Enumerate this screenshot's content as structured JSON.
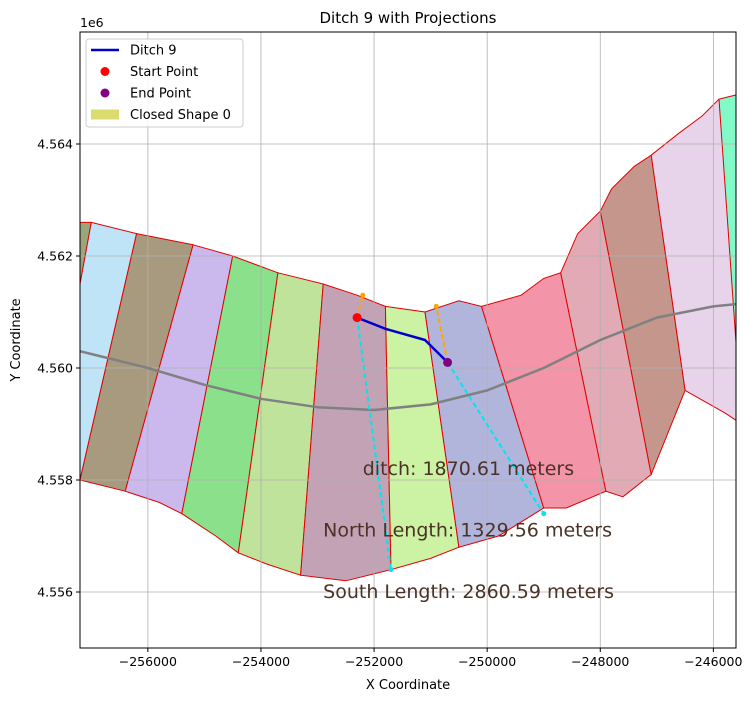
{
  "chart_data": {
    "type": "scatter",
    "title": "Ditch 9 with Projections",
    "xlabel": "X Coordinate",
    "ylabel": "Y Coordinate",
    "y_offset_label": "1e6",
    "xlim": [
      -257200,
      -245600
    ],
    "ylim": [
      4555000,
      4566000
    ],
    "grid": true,
    "legend_placement": "top-left",
    "x_ticks": [
      -256000,
      -254000,
      -252000,
      -250000,
      -248000,
      -246000
    ],
    "x_tick_labels": [
      "−256000",
      "−254000",
      "−252000",
      "−250000",
      "−248000",
      "−246000"
    ],
    "y_ticks": [
      4556000,
      4558000,
      4560000,
      4562000,
      4564000
    ],
    "y_tick_labels": [
      "4.556",
      "4.558",
      "4.560",
      "4.562",
      "4.564"
    ],
    "legend": [
      {
        "label": "Ditch 9",
        "kind": "line",
        "color": "#0000cc"
      },
      {
        "label": "Start Point",
        "kind": "dot",
        "color": "#ff0000"
      },
      {
        "label": "End Point",
        "kind": "dot",
        "color": "#800080"
      },
      {
        "label": "Closed Shape 0",
        "kind": "patch",
        "color": "#dcdc6e"
      }
    ],
    "annotations": [
      {
        "text": "ditch: 1870.61 meters",
        "x": -252200,
        "y": 4558200
      },
      {
        "text": "North Length: 1329.56 meters",
        "x": -252900,
        "y": 4557100
      },
      {
        "text": "South Length: 2860.59 meters",
        "x": -252900,
        "y": 4556000
      }
    ],
    "polygons": [
      {
        "color": "#9aa67a",
        "points": [
          [
            -257200,
            4562600
          ],
          [
            -257000,
            4562600
          ],
          [
            -257200,
            4561500
          ]
        ]
      },
      {
        "color": "#bfe3f7",
        "points": [
          [
            -257000,
            4562600
          ],
          [
            -256200,
            4562400
          ],
          [
            -257200,
            4558000
          ],
          [
            -257200,
            4561500
          ]
        ]
      },
      {
        "color": "#a89a7e",
        "points": [
          [
            -256200,
            4562400
          ],
          [
            -255200,
            4562200
          ],
          [
            -256400,
            4557800
          ],
          [
            -257200,
            4558000
          ]
        ]
      },
      {
        "color": "#cbb9ee",
        "points": [
          [
            -255200,
            4562200
          ],
          [
            -254500,
            4562000
          ],
          [
            -255400,
            4557400
          ],
          [
            -255800,
            4557600
          ],
          [
            -256400,
            4557800
          ]
        ]
      },
      {
        "color": "#8be08b",
        "points": [
          [
            -254500,
            4562000
          ],
          [
            -253700,
            4561700
          ],
          [
            -254400,
            4556700
          ],
          [
            -254800,
            4557000
          ],
          [
            -255400,
            4557400
          ]
        ]
      },
      {
        "color": "#bfe39a",
        "points": [
          [
            -253700,
            4561700
          ],
          [
            -252900,
            4561500
          ],
          [
            -253300,
            4556300
          ],
          [
            -253900,
            4556500
          ],
          [
            -254400,
            4556700
          ]
        ]
      },
      {
        "color": "#c4a2b6",
        "points": [
          [
            -252900,
            4561500
          ],
          [
            -252300,
            4561300
          ],
          [
            -251800,
            4561100
          ],
          [
            -251700,
            4556400
          ],
          [
            -252500,
            4556200
          ],
          [
            -253300,
            4556300
          ]
        ]
      },
      {
        "color": "#ccf3a3",
        "points": [
          [
            -251800,
            4561100
          ],
          [
            -251100,
            4561000
          ],
          [
            -250500,
            4556800
          ],
          [
            -251000,
            4556600
          ],
          [
            -251700,
            4556400
          ]
        ]
      },
      {
        "color": "#b2b5db",
        "points": [
          [
            -251100,
            4561000
          ],
          [
            -250500,
            4561200
          ],
          [
            -250100,
            4561100
          ],
          [
            -249000,
            4557500
          ],
          [
            -249800,
            4557000
          ],
          [
            -250500,
            4556800
          ]
        ]
      },
      {
        "color": "#f494a8",
        "points": [
          [
            -250100,
            4561100
          ],
          [
            -249400,
            4561300
          ],
          [
            -249000,
            4561600
          ],
          [
            -248700,
            4561700
          ],
          [
            -247900,
            4557800
          ],
          [
            -248600,
            4557500
          ],
          [
            -249000,
            4557500
          ]
        ]
      },
      {
        "color": "#e1aab4",
        "points": [
          [
            -248700,
            4561700
          ],
          [
            -248400,
            4562400
          ],
          [
            -248000,
            4562800
          ],
          [
            -247100,
            4558100
          ],
          [
            -247600,
            4557700
          ],
          [
            -247900,
            4557800
          ]
        ]
      },
      {
        "color": "#c5968c",
        "points": [
          [
            -248000,
            4562800
          ],
          [
            -247800,
            4563200
          ],
          [
            -247400,
            4563600
          ],
          [
            -247100,
            4563800
          ],
          [
            -246500,
            4559600
          ],
          [
            -246700,
            4559100
          ],
          [
            -247100,
            4558100
          ]
        ]
      },
      {
        "color": "#e8d4ea",
        "points": [
          [
            -247100,
            4563800
          ],
          [
            -246600,
            4564200
          ],
          [
            -246200,
            4564500
          ],
          [
            -245900,
            4564800
          ],
          [
            -245500,
            4564900
          ],
          [
            -245500,
            4559000
          ],
          [
            -245800,
            4559200
          ],
          [
            -246500,
            4559600
          ]
        ]
      },
      {
        "color": "#82fac8",
        "points": [
          [
            -245900,
            4564800
          ],
          [
            -245500,
            4564900
          ],
          [
            -245500,
            4559000
          ]
        ]
      }
    ],
    "series": [
      {
        "name": "Ditch 9",
        "color": "#0000cc",
        "points": [
          [
            -252300,
            4560900
          ],
          [
            -251800,
            4560700
          ],
          [
            -251100,
            4560500
          ],
          [
            -250700,
            4560100
          ]
        ]
      },
      {
        "name": "",
        "color": "#00e5ee",
        "dashed": true,
        "points": [
          [
            -252300,
            4560900
          ],
          [
            -251700,
            4556400
          ]
        ]
      },
      {
        "name": "",
        "color": "#00e5ee",
        "dashed": true,
        "points": [
          [
            -250700,
            4560100
          ],
          [
            -249000,
            4557400
          ]
        ]
      },
      {
        "name": "",
        "color": "#ffa500",
        "dashed": true,
        "points": [
          [
            -252300,
            4560900
          ],
          [
            -252200,
            4561300
          ]
        ]
      },
      {
        "name": "",
        "color": "#ffa500",
        "dashed": true,
        "points": [
          [
            -250700,
            4560100
          ],
          [
            -250900,
            4561100
          ]
        ]
      },
      {
        "name": "",
        "color": "#808080",
        "points": [
          [
            -257200,
            4560300
          ],
          [
            -256000,
            4560000
          ],
          [
            -255000,
            4559700
          ],
          [
            -254000,
            4559450
          ],
          [
            -253000,
            4559300
          ],
          [
            -252000,
            4559250
          ],
          [
            -251000,
            4559350
          ],
          [
            -250000,
            4559600
          ],
          [
            -249000,
            4560000
          ],
          [
            -248000,
            4560500
          ],
          [
            -247000,
            4560900
          ],
          [
            -246000,
            4561100
          ],
          [
            -245500,
            4561150
          ]
        ]
      }
    ],
    "markers": [
      {
        "name": "Start Point",
        "color": "#ff0000",
        "x": -252300,
        "y": 4560900
      },
      {
        "name": "End Point",
        "color": "#800080",
        "x": -250700,
        "y": 4560100
      }
    ]
  }
}
